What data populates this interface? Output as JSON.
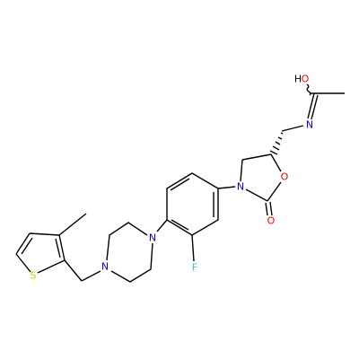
{
  "atoms": [
    {
      "label": "H"
    },
    {
      "label": "O"
    },
    {
      "label": "N"
    },
    {
      "label": "O"
    },
    {
      "label": "O"
    },
    {
      "label": "N"
    },
    {
      "label": "F"
    },
    {
      "label": "N"
    },
    {
      "label": "N"
    },
    {
      "label": "S"
    }
  ]
}
